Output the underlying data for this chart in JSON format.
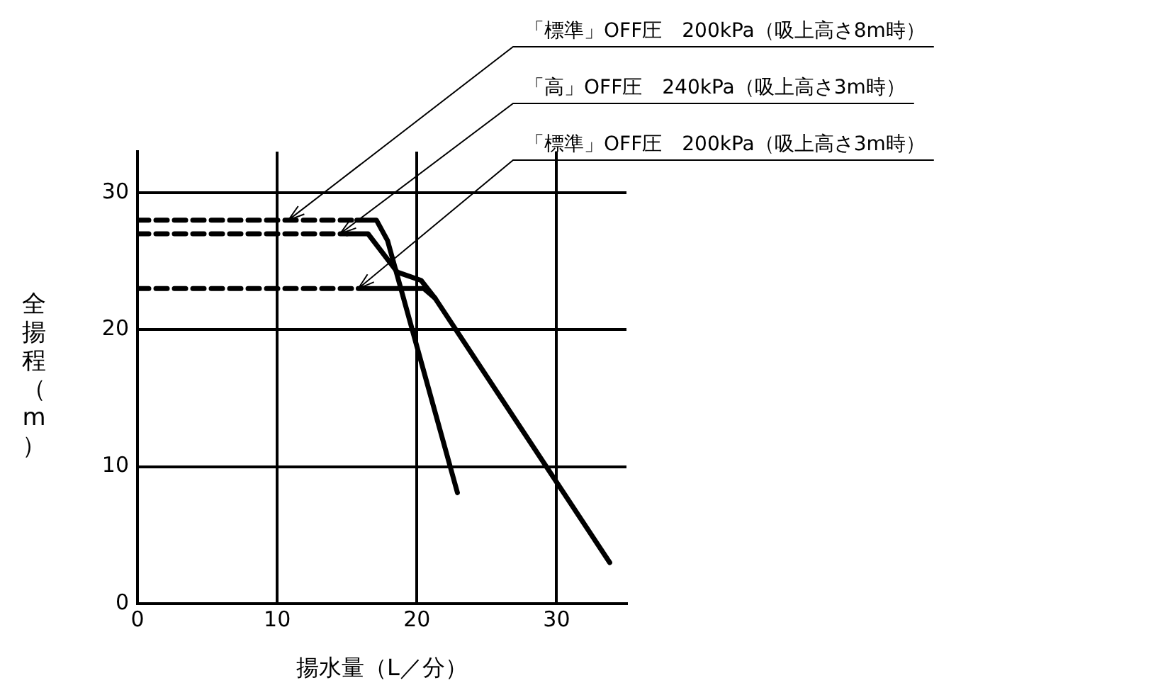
{
  "chart_data": {
    "type": "line",
    "xlabel": "揚水量（L／分）",
    "ylabel": "全揚程（m）",
    "xlim": [
      0,
      35
    ],
    "ylim": [
      0,
      33
    ],
    "xticks": [
      0,
      10,
      20,
      30
    ],
    "yticks": [
      0,
      10,
      20,
      30
    ],
    "grid": true,
    "legend": false,
    "marker": "none",
    "series": [
      {
        "color": "#000000",
        "line_style": "dashed",
        "x": [
          0,
          15.7
        ],
        "values": [
          28,
          28
        ]
      },
      {
        "color": "#000000",
        "line_style": "solid",
        "x": [
          15.7,
          17.1,
          17.9,
          22.9
        ],
        "values": [
          28,
          28,
          26.5,
          8.1
        ]
      },
      {
        "color": "#000000",
        "line_style": "dashed",
        "x": [
          0,
          15
        ],
        "values": [
          27,
          27
        ]
      },
      {
        "color": "#000000",
        "line_style": "solid",
        "x": [
          15,
          16.5,
          18.6,
          20.3,
          21.3,
          33.8
        ],
        "values": [
          27,
          27,
          24.2,
          23.6,
          22.3,
          3
        ]
      },
      {
        "color": "#000000",
        "line_style": "dashed",
        "x": [
          0,
          15.8
        ],
        "values": [
          23,
          23
        ]
      },
      {
        "color": "#000000",
        "line_style": "solid",
        "x": [
          15.8,
          20.5,
          21.3
        ],
        "values": [
          23,
          23,
          22.3
        ]
      }
    ],
    "annotations": [
      {
        "text": "「標準」OFF圧　200kPa（吸上高さ8m時）",
        "x": 10.8,
        "y": 28
      },
      {
        "text": "「高」OFF圧　240kPa（吸上高さ3m時）",
        "x": 14.5,
        "y": 27
      },
      {
        "text": "「標準」OFF圧　200kPa（吸上高さ3m時）",
        "x": 15.8,
        "y": 23
      }
    ]
  }
}
